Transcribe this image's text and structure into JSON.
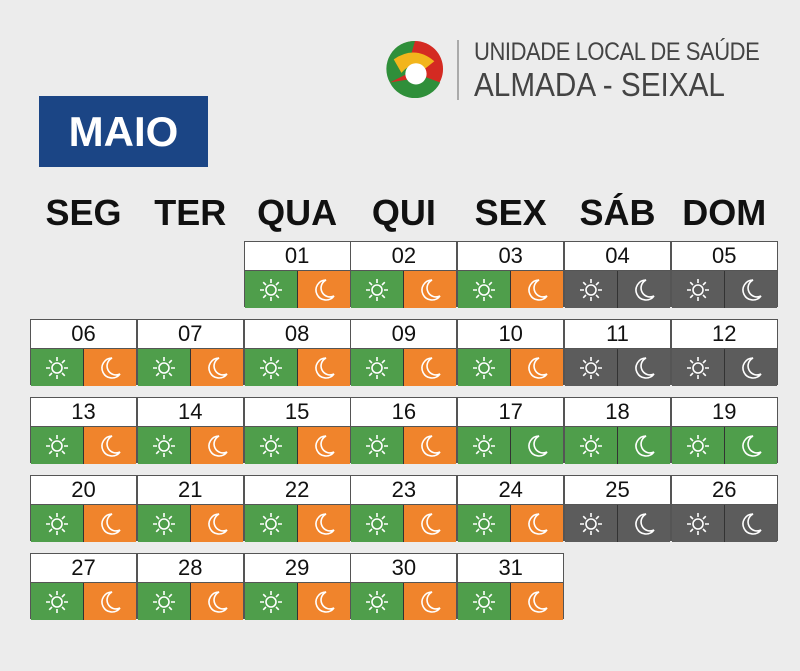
{
  "header": {
    "org_line1": "UNIDADE LOCAL DE SAÚDE",
    "org_line2": "ALMADA - SEIXAL"
  },
  "month": "MAIO",
  "weekdays": [
    "SEG",
    "TER",
    "QUA",
    "QUI",
    "SEX",
    "SÁB",
    "DOM"
  ],
  "colors": {
    "green": "#4f9e4b",
    "orange": "#f0842c",
    "gray": "#5c5c5c",
    "month_bg": "#1b4585"
  },
  "icons": {
    "day": "sun-icon",
    "night": "moon-icon"
  },
  "weeks": [
    {
      "start_col": 2,
      "days": [
        {
          "day": "01",
          "sun": "green",
          "moon": "orange"
        },
        {
          "day": "02",
          "sun": "green",
          "moon": "orange"
        },
        {
          "day": "03",
          "sun": "green",
          "moon": "orange"
        },
        {
          "day": "04",
          "sun": "gray",
          "moon": "gray"
        },
        {
          "day": "05",
          "sun": "gray",
          "moon": "gray"
        }
      ]
    },
    {
      "start_col": 0,
      "days": [
        {
          "day": "06",
          "sun": "green",
          "moon": "orange"
        },
        {
          "day": "07",
          "sun": "green",
          "moon": "orange"
        },
        {
          "day": "08",
          "sun": "green",
          "moon": "orange"
        },
        {
          "day": "09",
          "sun": "green",
          "moon": "orange"
        },
        {
          "day": "10",
          "sun": "green",
          "moon": "orange"
        },
        {
          "day": "11",
          "sun": "gray",
          "moon": "gray"
        },
        {
          "day": "12",
          "sun": "gray",
          "moon": "gray"
        }
      ]
    },
    {
      "start_col": 0,
      "days": [
        {
          "day": "13",
          "sun": "green",
          "moon": "orange"
        },
        {
          "day": "14",
          "sun": "green",
          "moon": "orange"
        },
        {
          "day": "15",
          "sun": "green",
          "moon": "orange"
        },
        {
          "day": "16",
          "sun": "green",
          "moon": "orange"
        },
        {
          "day": "17",
          "sun": "green",
          "moon": "green"
        },
        {
          "day": "18",
          "sun": "green",
          "moon": "green"
        },
        {
          "day": "19",
          "sun": "green",
          "moon": "green"
        }
      ]
    },
    {
      "start_col": 0,
      "days": [
        {
          "day": "20",
          "sun": "green",
          "moon": "orange"
        },
        {
          "day": "21",
          "sun": "green",
          "moon": "orange"
        },
        {
          "day": "22",
          "sun": "green",
          "moon": "orange"
        },
        {
          "day": "23",
          "sun": "green",
          "moon": "orange"
        },
        {
          "day": "24",
          "sun": "green",
          "moon": "orange"
        },
        {
          "day": "25",
          "sun": "gray",
          "moon": "gray"
        },
        {
          "day": "26",
          "sun": "gray",
          "moon": "gray"
        }
      ]
    },
    {
      "start_col": 0,
      "days": [
        {
          "day": "27",
          "sun": "green",
          "moon": "orange"
        },
        {
          "day": "28",
          "sun": "green",
          "moon": "orange"
        },
        {
          "day": "29",
          "sun": "green",
          "moon": "orange"
        },
        {
          "day": "30",
          "sun": "green",
          "moon": "orange"
        },
        {
          "day": "31",
          "sun": "green",
          "moon": "orange"
        }
      ]
    }
  ]
}
